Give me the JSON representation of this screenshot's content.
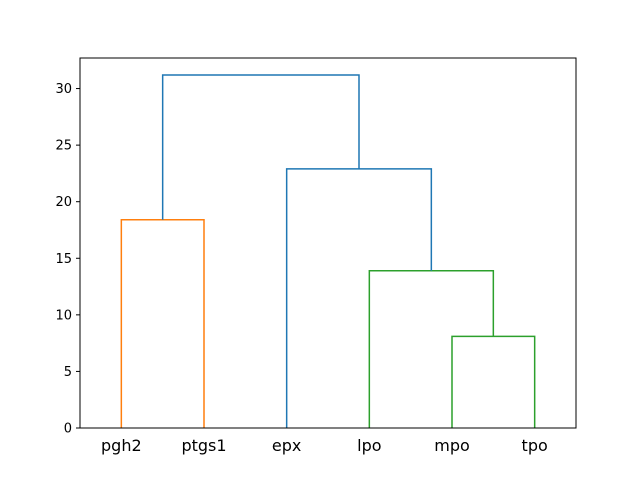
{
  "chart_data": {
    "type": "dendrogram",
    "title": "",
    "xlabel": "",
    "ylabel": "",
    "ylim": [
      0,
      32.7
    ],
    "yticks": [
      0,
      5,
      10,
      15,
      20,
      25,
      30
    ],
    "leaves": [
      "pgh2",
      "ptgs1",
      "epx",
      "lpo",
      "mpo",
      "tpo"
    ],
    "colors": {
      "above_threshold": "#1f77b4",
      "cluster_1": "#ff7f0e",
      "cluster_2": "#2ca02c"
    },
    "merges": [
      {
        "left": "pgh2",
        "right": "ptgs1",
        "height": 18.4,
        "color": "#ff7f0e"
      },
      {
        "left": "mpo",
        "right": "tpo",
        "height": 8.1,
        "color": "#2ca02c"
      },
      {
        "left": "lpo",
        "right": "mpo+tpo",
        "height": 13.9,
        "color": "#2ca02c"
      },
      {
        "left": "epx",
        "right": "lpo+mpo+tpo",
        "height": 22.9,
        "color": "#1f77b4"
      },
      {
        "left": "pgh2+ptgs1",
        "right": "epx+lpo+mpo+tpo",
        "height": 31.2,
        "color": "#1f77b4"
      }
    ]
  }
}
